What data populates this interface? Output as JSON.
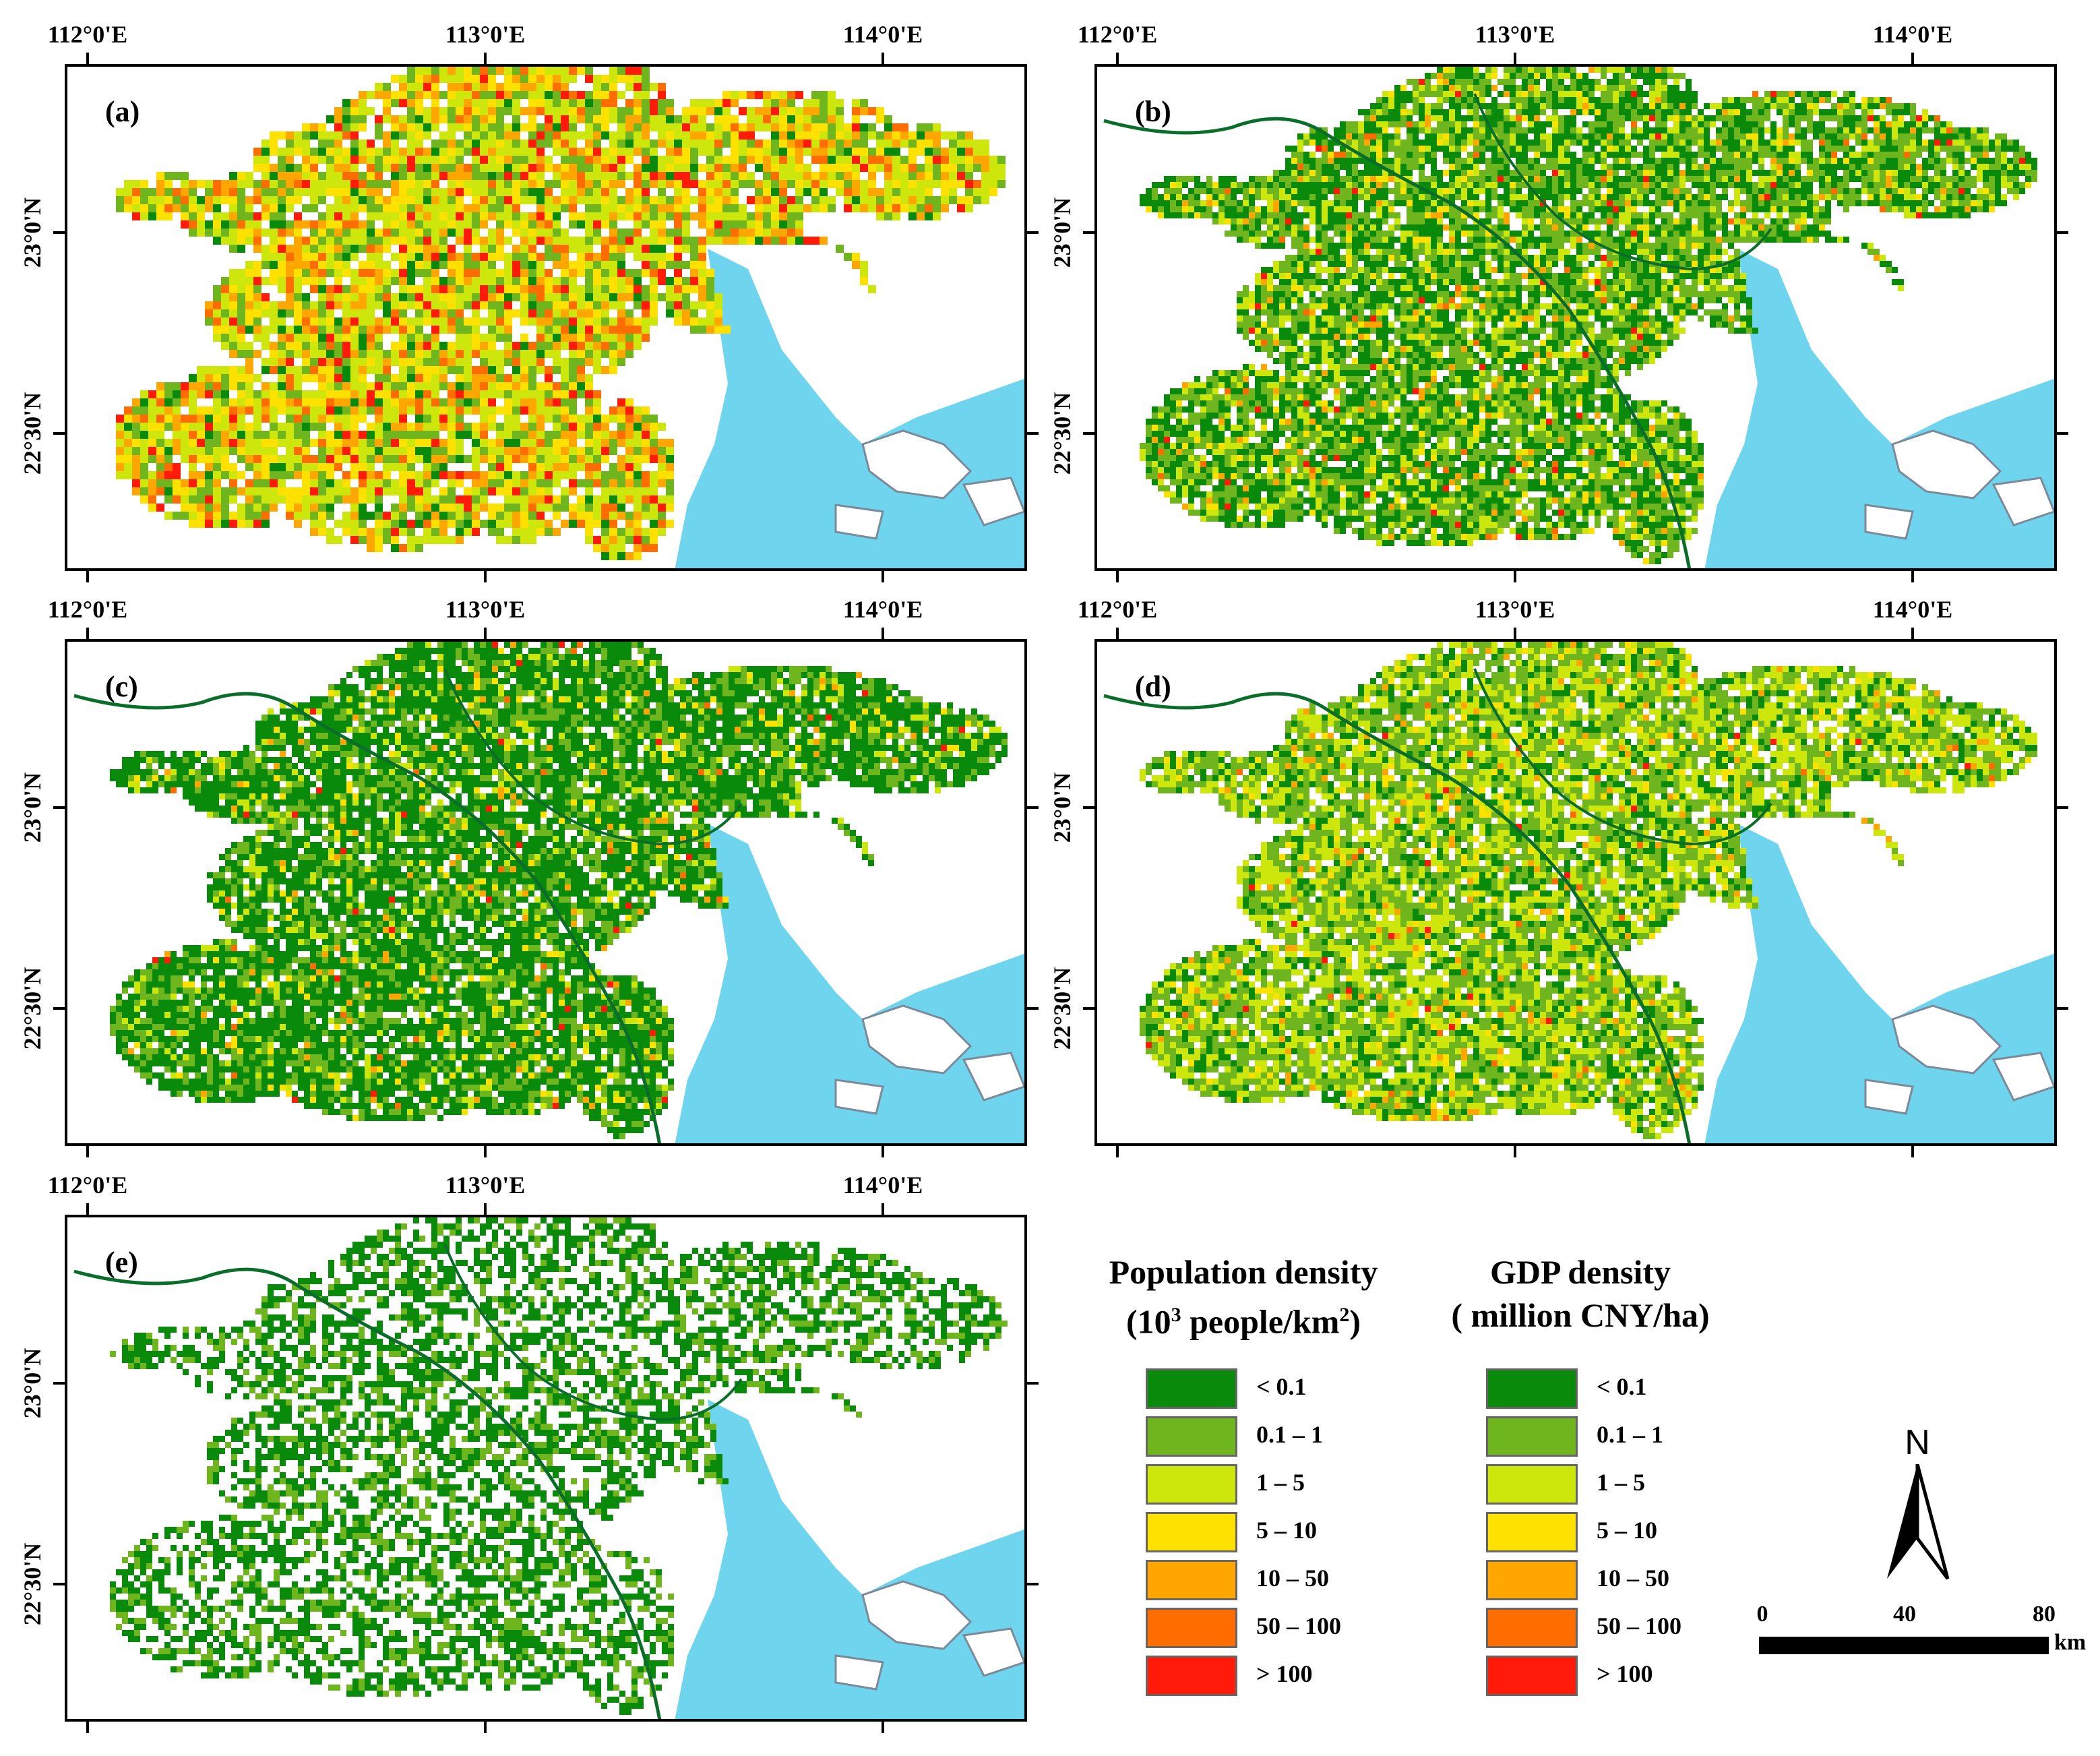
{
  "panels": [
    {
      "id": "a",
      "label": "(a)",
      "theme": "pop_mixed"
    },
    {
      "id": "b",
      "label": "(b)",
      "theme": "gdp_fine"
    },
    {
      "id": "c",
      "label": "(c)",
      "theme": "green_fine"
    },
    {
      "id": "d",
      "label": "(d)",
      "theme": "yellowgreen_fine"
    },
    {
      "id": "e",
      "label": "(e)",
      "theme": "sparse_green"
    }
  ],
  "axes": {
    "lon_ticks": [
      "112°0'E",
      "113°0'E",
      "114°0'E"
    ],
    "lat_ticks": [
      "23°0'N",
      "22°30'N"
    ]
  },
  "legends": [
    {
      "title_line1": "Population density",
      "title_line2_pre": "(10",
      "title_line2_sup": "3",
      "title_line2_mid": " people/km",
      "title_line2_sup2": "2",
      "title_line2_post": ")",
      "classes": [
        "< 0.1",
        "0.1 – 1",
        "1 – 5",
        "5 – 10",
        "10 – 50",
        "50 – 100",
        "> 100"
      ]
    },
    {
      "title_line1": "GDP density",
      "title_line2_pre": "( million CNY/ha)",
      "title_line2_sup": "",
      "title_line2_mid": "",
      "title_line2_sup2": "",
      "title_line2_post": "",
      "classes": [
        "< 0.1",
        "0.1 – 1",
        "1 – 5",
        "5 – 10",
        "10 – 50",
        "50 – 100",
        "> 100"
      ]
    }
  ],
  "class_colors": [
    "#0a8a0a",
    "#6fb51e",
    "#cde60b",
    "#ffe100",
    "#ffa700",
    "#ff6d00",
    "#ff1a0a"
  ],
  "water_color": "#6fd5ee",
  "north_label": "N",
  "scale": {
    "ticks": [
      "0",
      "40",
      "80"
    ],
    "unit": "km"
  }
}
